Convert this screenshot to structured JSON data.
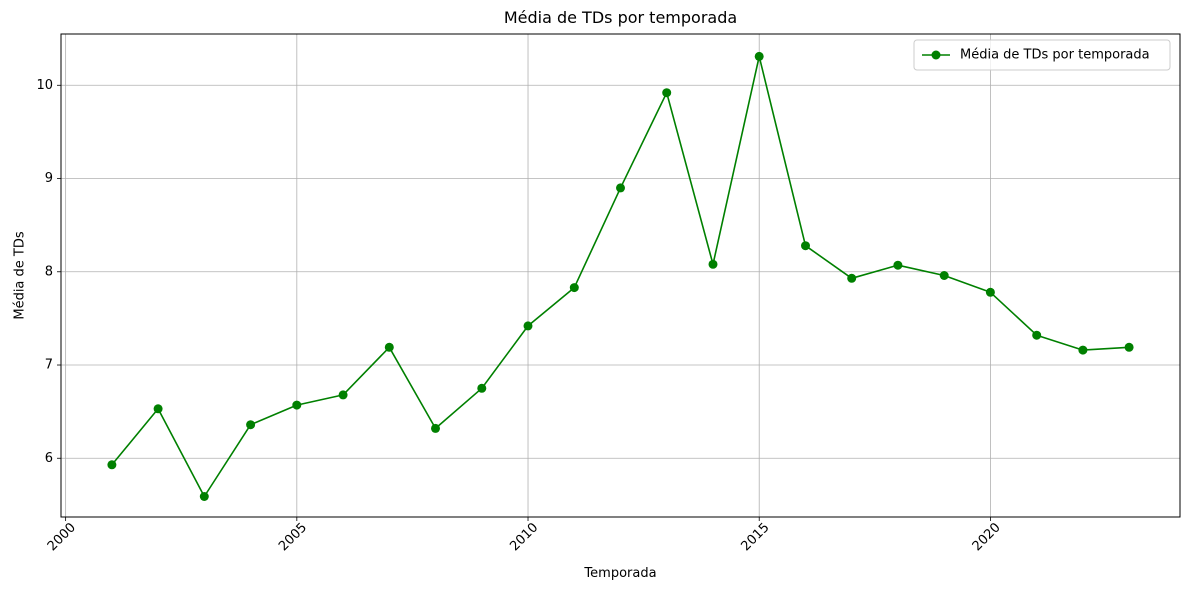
{
  "chart_data": {
    "type": "line",
    "title": "Média de TDs por temporada",
    "xlabel": "Temporada",
    "ylabel": "Média de TDs",
    "xlim": [
      1999.9,
      2024.1
    ],
    "ylim": [
      5.37,
      10.55
    ],
    "xticks": [
      2000,
      2005,
      2010,
      2015,
      2020
    ],
    "yticks": [
      6,
      7,
      8,
      9,
      10
    ],
    "x_tick_rotation_deg": 45,
    "grid": true,
    "legend_position": "top-right",
    "series": [
      {
        "name": "Média de TDs por temporada",
        "color": "#008000",
        "marker": "circle",
        "x": [
          2001,
          2002,
          2003,
          2004,
          2005,
          2006,
          2007,
          2008,
          2009,
          2010,
          2011,
          2012,
          2013,
          2014,
          2015,
          2016,
          2017,
          2018,
          2019,
          2020,
          2021,
          2022,
          2023
        ],
        "y": [
          5.93,
          6.53,
          5.59,
          6.36,
          6.57,
          6.68,
          7.19,
          6.32,
          6.75,
          7.42,
          7.83,
          8.9,
          9.92,
          8.08,
          10.31,
          8.28,
          7.93,
          8.07,
          7.96,
          7.78,
          7.32,
          7.16,
          7.19
        ]
      }
    ]
  }
}
